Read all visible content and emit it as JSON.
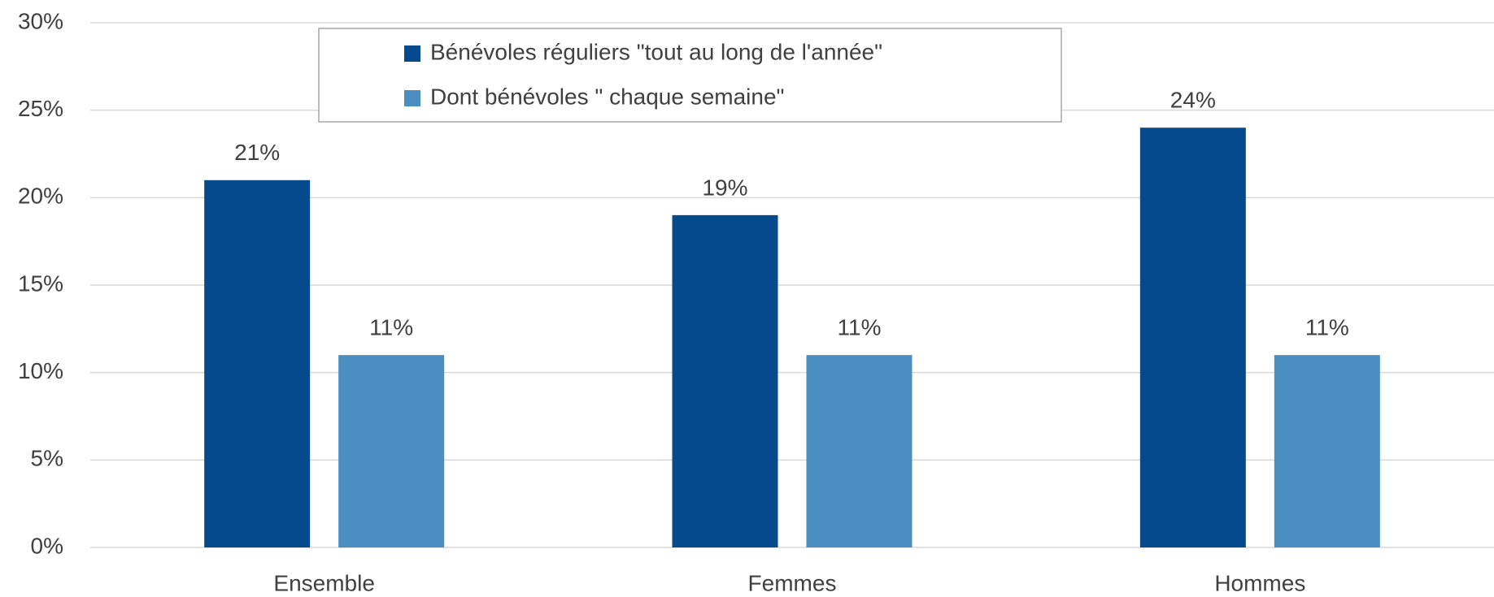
{
  "chart_data": {
    "type": "bar",
    "categories": [
      "Ensemble",
      "Femmes",
      "Hommes"
    ],
    "series": [
      {
        "name": "Bénévoles réguliers \"tout au long de l'année\"",
        "color": "#064a8e",
        "values": [
          21,
          19,
          24
        ],
        "value_labels": [
          "21%",
          "19%",
          "24%"
        ]
      },
      {
        "name": "Dont bénévoles \" chaque semaine\"",
        "color": "#4a8ec2",
        "values": [
          11,
          11,
          11
        ],
        "value_labels": [
          "11%",
          "11%",
          "11%"
        ]
      }
    ],
    "ylim": [
      0,
      30
    ],
    "yticks": [
      {
        "value": 0,
        "label": "0%"
      },
      {
        "value": 5,
        "label": "5%"
      },
      {
        "value": 10,
        "label": "10%"
      },
      {
        "value": 15,
        "label": "15%"
      },
      {
        "value": 20,
        "label": "20%"
      },
      {
        "value": 25,
        "label": "25%"
      },
      {
        "value": 30,
        "label": "30%"
      }
    ],
    "grid": true,
    "legend": "top"
  }
}
